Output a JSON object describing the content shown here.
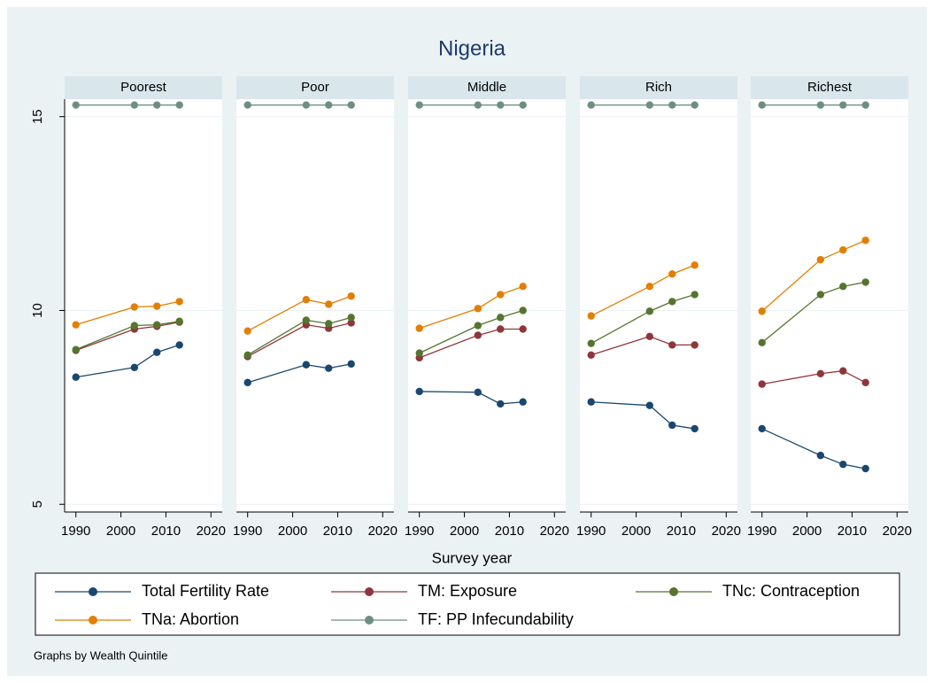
{
  "title": "Nigeria",
  "x_label": "Survey year",
  "note": "Graphs by Wealth Quintile",
  "chart_data": [
    {
      "type": "line",
      "title": "Poorest",
      "x": [
        1990,
        2003,
        2008,
        2013
      ],
      "xlim": [
        1987.5,
        2022.5
      ],
      "xticks": [
        1990,
        2000,
        2010,
        2020
      ],
      "ylim": [
        4.8,
        15.45
      ],
      "yticks": [
        5,
        10,
        15
      ],
      "grid": true,
      "series": [
        {
          "name": "Total Fertility Rate",
          "color": "#1a476f",
          "values": [
            8.28,
            8.53,
            8.92,
            9.11
          ]
        },
        {
          "name": "TM: Exposure",
          "color": "#90353b",
          "values": [
            8.97,
            9.52,
            9.59,
            9.7
          ]
        },
        {
          "name": "TNc: Contraception",
          "color": "#55752f",
          "values": [
            8.99,
            9.61,
            9.63,
            9.72
          ]
        },
        {
          "name": "TNa: Abortion",
          "color": "#e37e00",
          "values": [
            9.63,
            10.09,
            10.11,
            10.23
          ]
        },
        {
          "name": "TF: PP Infecundability",
          "color": "#6e8e84",
          "values": [
            15.3,
            15.3,
            15.3,
            15.3
          ]
        }
      ]
    },
    {
      "type": "line",
      "title": "Poor",
      "x": [
        1990,
        2003,
        2008,
        2013
      ],
      "xlim": [
        1987.5,
        2022.5
      ],
      "xticks": [
        1990,
        2000,
        2010,
        2020
      ],
      "ylim": [
        4.8,
        15.45
      ],
      "yticks": [
        5,
        10,
        15
      ],
      "grid": true,
      "series": [
        {
          "name": "Total Fertility Rate",
          "color": "#1a476f",
          "values": [
            8.14,
            8.6,
            8.51,
            8.62
          ]
        },
        {
          "name": "TM: Exposure",
          "color": "#90353b",
          "values": [
            8.81,
            9.63,
            9.54,
            9.68
          ]
        },
        {
          "name": "TNc: Contraception",
          "color": "#55752f",
          "values": [
            8.85,
            9.75,
            9.66,
            9.82
          ]
        },
        {
          "name": "TNa: Abortion",
          "color": "#e37e00",
          "values": [
            9.47,
            10.28,
            10.16,
            10.37
          ]
        },
        {
          "name": "TF: PP Infecundability",
          "color": "#6e8e84",
          "values": [
            15.3,
            15.3,
            15.3,
            15.3
          ]
        }
      ]
    },
    {
      "type": "line",
      "title": "Middle",
      "x": [
        1990,
        2003,
        2008,
        2013
      ],
      "xlim": [
        1987.5,
        2022.5
      ],
      "xticks": [
        1990,
        2000,
        2010,
        2020
      ],
      "ylim": [
        4.8,
        15.45
      ],
      "yticks": [
        5,
        10,
        15
      ],
      "grid": true,
      "series": [
        {
          "name": "Total Fertility Rate",
          "color": "#1a476f",
          "values": [
            7.91,
            7.89,
            7.59,
            7.64
          ]
        },
        {
          "name": "TM: Exposure",
          "color": "#90353b",
          "values": [
            8.78,
            9.36,
            9.52,
            9.52
          ]
        },
        {
          "name": "TNc: Contraception",
          "color": "#55752f",
          "values": [
            8.9,
            9.61,
            9.82,
            10.0
          ]
        },
        {
          "name": "TNa: Abortion",
          "color": "#e37e00",
          "values": [
            9.54,
            10.05,
            10.41,
            10.62
          ]
        },
        {
          "name": "TF: PP Infecundability",
          "color": "#6e8e84",
          "values": [
            15.3,
            15.3,
            15.3,
            15.3
          ]
        }
      ]
    },
    {
      "type": "line",
      "title": "Rich",
      "x": [
        1990,
        2003,
        2008,
        2013
      ],
      "xlim": [
        1987.5,
        2022.5
      ],
      "xticks": [
        1990,
        2000,
        2010,
        2020
      ],
      "ylim": [
        4.8,
        15.45
      ],
      "yticks": [
        5,
        10,
        15
      ],
      "grid": true,
      "series": [
        {
          "name": "Total Fertility Rate",
          "color": "#1a476f",
          "values": [
            7.64,
            7.55,
            7.04,
            6.95
          ]
        },
        {
          "name": "TM: Exposure",
          "color": "#90353b",
          "values": [
            8.85,
            9.33,
            9.11,
            9.11
          ]
        },
        {
          "name": "TNc: Contraception",
          "color": "#55752f",
          "values": [
            9.15,
            9.98,
            10.23,
            10.41
          ]
        },
        {
          "name": "TNa: Abortion",
          "color": "#e37e00",
          "values": [
            9.86,
            10.62,
            10.94,
            11.17
          ]
        },
        {
          "name": "TF: PP Infecundability",
          "color": "#6e8e84",
          "values": [
            15.3,
            15.3,
            15.3,
            15.3
          ]
        }
      ]
    },
    {
      "type": "line",
      "title": "Richest",
      "x": [
        1990,
        2003,
        2008,
        2013
      ],
      "xlim": [
        1987.5,
        2022.5
      ],
      "xticks": [
        1990,
        2000,
        2010,
        2020
      ],
      "ylim": [
        4.8,
        15.45
      ],
      "yticks": [
        5,
        10,
        15
      ],
      "grid": true,
      "series": [
        {
          "name": "Total Fertility Rate",
          "color": "#1a476f",
          "values": [
            6.95,
            6.26,
            6.03,
            5.92
          ]
        },
        {
          "name": "TM: Exposure",
          "color": "#90353b",
          "values": [
            8.1,
            8.37,
            8.44,
            8.14
          ]
        },
        {
          "name": "TNc: Contraception",
          "color": "#55752f",
          "values": [
            9.17,
            10.41,
            10.62,
            10.73
          ]
        },
        {
          "name": "TNa: Abortion",
          "color": "#e37e00",
          "values": [
            9.98,
            11.31,
            11.56,
            11.81
          ]
        },
        {
          "name": "TF: PP Infecundability",
          "color": "#6e8e84",
          "values": [
            15.3,
            15.3,
            15.3,
            15.3
          ]
        }
      ]
    }
  ]
}
